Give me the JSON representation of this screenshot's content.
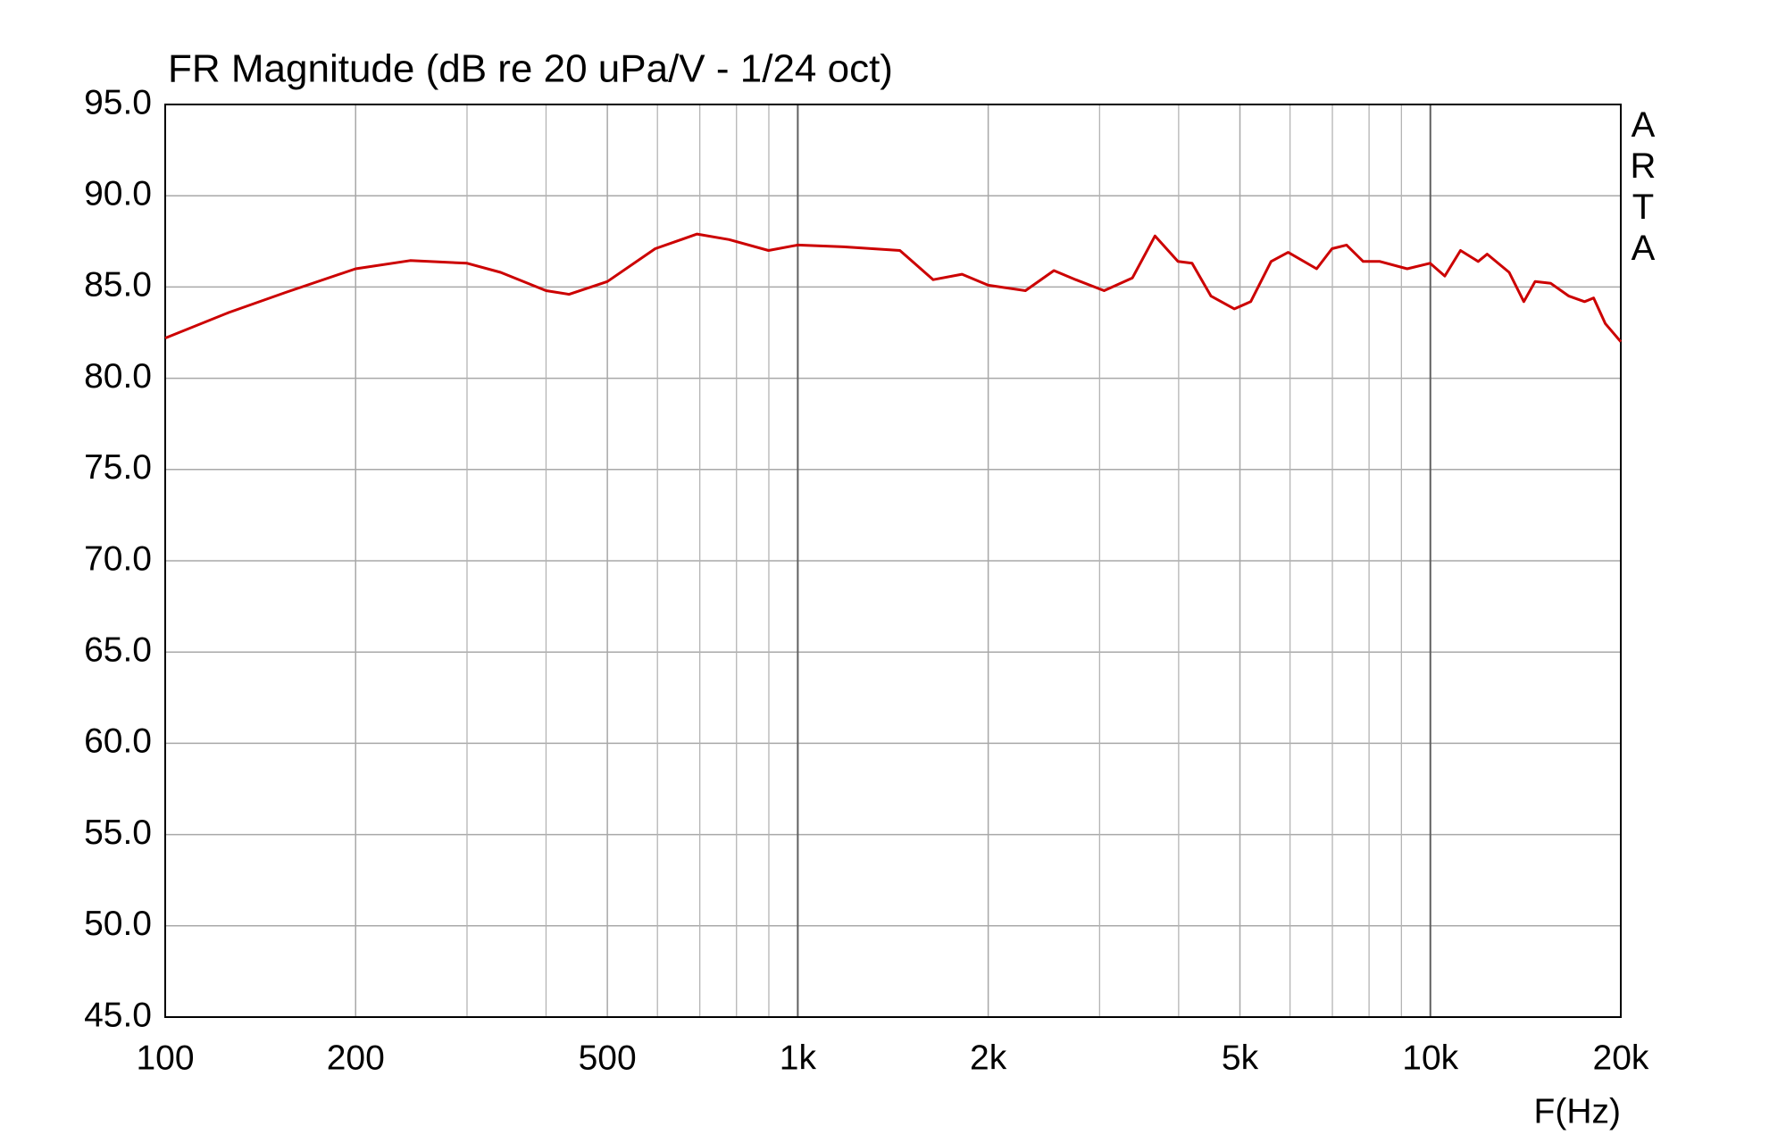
{
  "chart_data": {
    "type": "line",
    "title": "FR Magnitude (dB re 20 uPa/V - 1/24 oct)",
    "x_label": "F(Hz)",
    "watermark": "ARTA",
    "x_scale": "log",
    "grid": true,
    "xlim": [
      100,
      20000
    ],
    "xticks": [
      100,
      200,
      500,
      {
        "value": 1000,
        "label": "1k"
      },
      {
        "value": 2000,
        "label": "2k"
      },
      {
        "value": 5000,
        "label": "5k"
      },
      {
        "value": 10000,
        "label": "10k"
      },
      {
        "value": 20000,
        "label": "20k"
      }
    ],
    "x_minor_grid": [
      300,
      400,
      600,
      700,
      800,
      900,
      3000,
      4000,
      6000,
      7000,
      8000,
      9000
    ],
    "ylim": [
      45,
      95
    ],
    "yticks": [
      {
        "value": 95,
        "label": "95.0"
      },
      {
        "value": 90,
        "label": "90.0"
      },
      {
        "value": 85,
        "label": "85.0"
      },
      {
        "value": 80,
        "label": "80.0"
      },
      {
        "value": 75,
        "label": "75.0"
      },
      {
        "value": 70,
        "label": "70.0"
      },
      {
        "value": 65,
        "label": "65.0"
      },
      {
        "value": 60,
        "label": "60.0"
      },
      {
        "value": 55,
        "label": "55.0"
      },
      {
        "value": 50,
        "label": "50.0"
      },
      {
        "value": 45,
        "label": "45.0"
      }
    ],
    "x": [
      100,
      126,
      155,
      200,
      244,
      300,
      339,
      400,
      435,
      500,
      595,
      693,
      779,
      899,
      1000,
      1180,
      1450,
      1637,
      1818,
      2000,
      2290,
      2540,
      2750,
      3050,
      3380,
      3670,
      3990,
      4200,
      4500,
      4900,
      5200,
      5600,
      5960,
      6610,
      6990,
      7370,
      7830,
      8320,
      9190,
      9990,
      10540,
      11160,
      11900,
      12300,
      13320,
      14050,
      14640,
      15500,
      16560,
      17530,
      18120,
      18900,
      20000
    ],
    "series": [
      {
        "name": "FR Magnitude",
        "color": "#cc0000",
        "values": [
          82.2,
          83.6,
          84.7,
          86.0,
          86.45,
          86.3,
          85.8,
          84.8,
          84.6,
          85.3,
          87.1,
          87.9,
          87.6,
          87.0,
          87.3,
          87.2,
          87.0,
          85.4,
          85.7,
          85.1,
          84.8,
          85.9,
          85.4,
          84.8,
          85.5,
          87.8,
          86.4,
          86.3,
          84.5,
          83.8,
          84.2,
          86.4,
          86.9,
          86.0,
          87.1,
          87.3,
          86.4,
          86.4,
          86.0,
          86.3,
          85.6,
          87.0,
          86.4,
          86.8,
          85.8,
          84.2,
          85.3,
          85.2,
          84.5,
          84.2,
          84.4,
          83.0,
          82.0
        ]
      }
    ]
  }
}
